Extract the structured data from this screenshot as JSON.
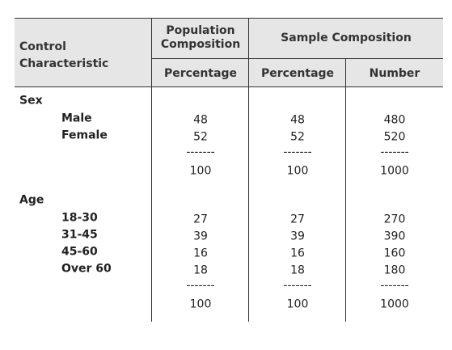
{
  "header": {
    "characteristic": "Control Characteristic",
    "population": "Population Composition",
    "sample": "Sample Composition",
    "subheaders": [
      "Percentage",
      "Percentage",
      "Number"
    ]
  },
  "sections": [
    {
      "label": "Sex",
      "rows": [
        {
          "label": "Male",
          "values": [
            "48",
            "48",
            "480"
          ]
        },
        {
          "label": "Female",
          "values": [
            "52",
            "52",
            "520"
          ]
        }
      ],
      "separator": [
        "-------",
        "-------",
        "-------"
      ],
      "total": [
        "100",
        "100",
        "1000"
      ]
    },
    {
      "label": "Age",
      "rows": [
        {
          "label": "18-30",
          "values": [
            "27",
            "27",
            "270"
          ]
        },
        {
          "label": "31-45",
          "values": [
            "39",
            "39",
            "390"
          ]
        },
        {
          "label": "45-60",
          "values": [
            "16",
            "16",
            "160"
          ]
        },
        {
          "label": "Over 60",
          "values": [
            "18",
            "18",
            "180"
          ]
        }
      ],
      "separator": [
        "-------",
        "-------",
        "-------"
      ],
      "total": [
        "100",
        "100",
        "1000"
      ]
    }
  ]
}
